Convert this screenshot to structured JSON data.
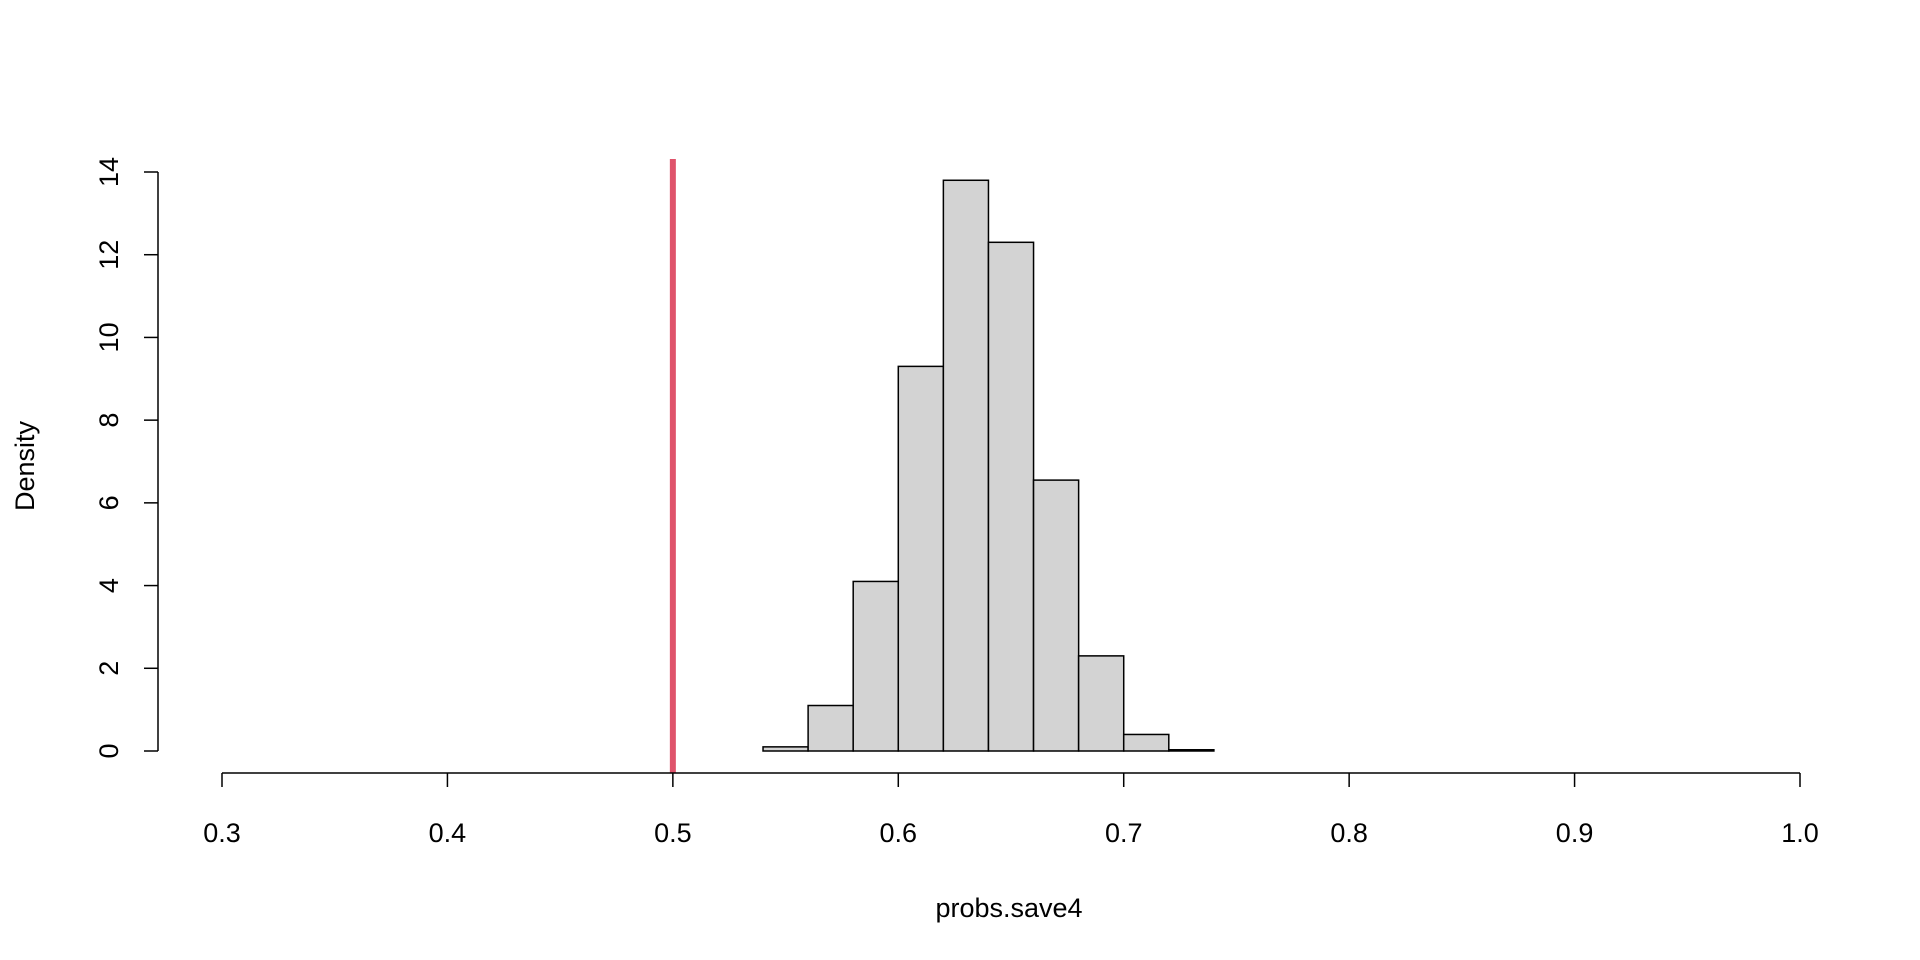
{
  "chart_data": {
    "type": "bar",
    "title": "",
    "xlabel": "probs.save4",
    "ylabel": "Density",
    "xlim": [
      0.3,
      1.0
    ],
    "ylim": [
      0,
      14
    ],
    "x_ticks": [
      "0.3",
      "0.4",
      "0.5",
      "0.6",
      "0.7",
      "0.8",
      "0.9",
      "1.0"
    ],
    "y_ticks": [
      "0",
      "2",
      "4",
      "6",
      "8",
      "10",
      "12",
      "14"
    ],
    "bins": [
      {
        "x0": 0.54,
        "x1": 0.56,
        "density": 0.1
      },
      {
        "x0": 0.56,
        "x1": 0.58,
        "density": 1.1
      },
      {
        "x0": 0.58,
        "x1": 0.6,
        "density": 4.1
      },
      {
        "x0": 0.6,
        "x1": 0.62,
        "density": 9.3
      },
      {
        "x0": 0.62,
        "x1": 0.64,
        "density": 13.8
      },
      {
        "x0": 0.64,
        "x1": 0.66,
        "density": 12.3
      },
      {
        "x0": 0.66,
        "x1": 0.68,
        "density": 6.55
      },
      {
        "x0": 0.68,
        "x1": 0.7,
        "density": 2.3
      },
      {
        "x0": 0.7,
        "x1": 0.72,
        "density": 0.4
      },
      {
        "x0": 0.72,
        "x1": 0.74,
        "density": 0.03
      }
    ],
    "reference_line": {
      "x": 0.5,
      "color": "#DF536B"
    },
    "bar_fill": "#D3D3D3",
    "bar_stroke": "#000000",
    "grid": false,
    "legend": "none"
  }
}
